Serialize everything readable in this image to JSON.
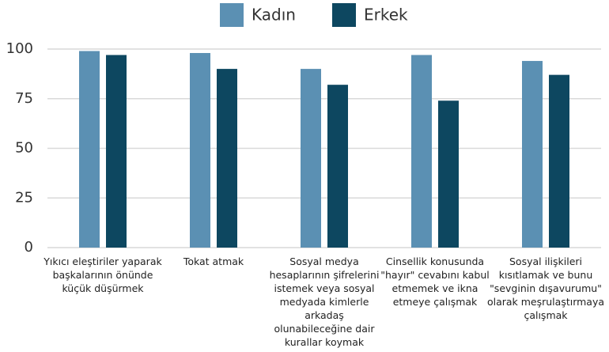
{
  "chart_data": {
    "type": "bar",
    "categories": [
      "Yıkıcı eleştiriler yaparak başkalarının önünde küçük düşürmek",
      "Tokat atmak",
      "Sosyal medya hesaplarının şifrelerini istemek veya sosyal medyada kimlerle arkadaş olunabileceğine dair kurallar koymak",
      "Cinsellik konusunda \"hayır\" cevabını kabul etmemek ve ikna etmeye çalışmak",
      "Sosyal ilişkileri kısıtlamak ve bunu \"sevginin dışavurumu\" olarak meşrulaştırmaya çalışmak"
    ],
    "series": [
      {
        "name": "Kadın",
        "color": "#5b90b3",
        "values": [
          99,
          98,
          90,
          97,
          94
        ]
      },
      {
        "name": "Erkek",
        "color": "#0d4760",
        "values": [
          97,
          90,
          82,
          74,
          87
        ]
      }
    ],
    "ylim": [
      0,
      100
    ],
    "yticks": [
      0,
      25,
      50,
      75,
      100
    ],
    "grid": true,
    "legend": "top"
  }
}
